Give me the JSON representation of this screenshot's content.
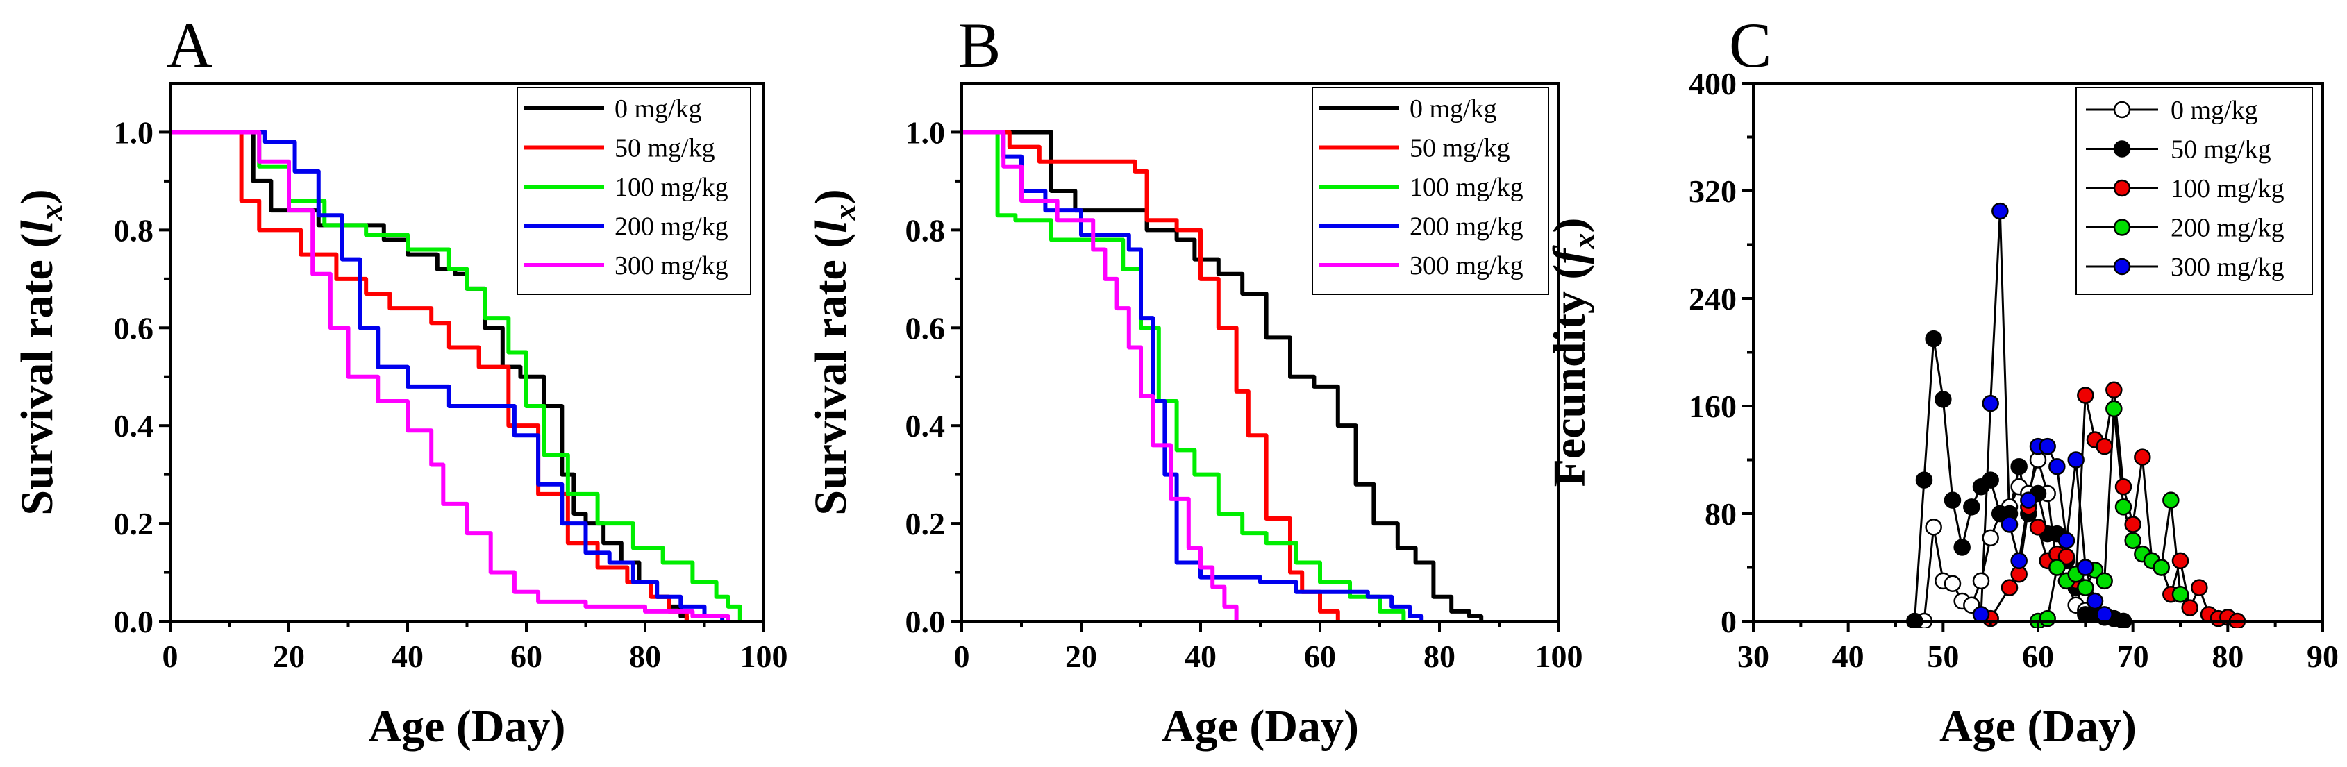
{
  "chart_data": [
    {
      "panel": "A",
      "type": "line",
      "step": true,
      "xlabel": "Age (Day)",
      "ylabel_main": "Survival rate (",
      "ylabel_var": "l",
      "ylabel_sub": "x",
      "ylabel_close": ")",
      "xlim": [
        0,
        100
      ],
      "ylim": [
        0,
        1.1
      ],
      "xticks": [
        0,
        20,
        40,
        60,
        80,
        100
      ],
      "xtick_labels": [
        "0",
        "20",
        "40",
        "60",
        "80",
        "100"
      ],
      "yticks": [
        0,
        0.2,
        0.4,
        0.6,
        0.8,
        1.0
      ],
      "ytick_labels": [
        "0.0",
        "0.2",
        "0.4",
        "0.6",
        "0.8",
        "1.0"
      ],
      "legend_position": "top-right",
      "series": [
        {
          "name": "0 mg/kg",
          "color": "#000000",
          "x": [
            0,
            12,
            14,
            17,
            25,
            32,
            36,
            40,
            45,
            48,
            50,
            53,
            56,
            59,
            63,
            66,
            68,
            70,
            73,
            76,
            79,
            82,
            84,
            86,
            87
          ],
          "y": [
            1.0,
            1.0,
            0.9,
            0.84,
            0.81,
            0.81,
            0.78,
            0.75,
            0.72,
            0.71,
            0.68,
            0.6,
            0.52,
            0.5,
            0.44,
            0.3,
            0.22,
            0.2,
            0.16,
            0.12,
            0.08,
            0.05,
            0.03,
            0.01,
            0.0
          ]
        },
        {
          "name": "50 mg/kg",
          "color": "#ff0000",
          "x": [
            0,
            11,
            12,
            15,
            22,
            28,
            33,
            37,
            44,
            47,
            52,
            57,
            62,
            67,
            72,
            77,
            81,
            84,
            87
          ],
          "y": [
            1.0,
            1.0,
            0.86,
            0.8,
            0.75,
            0.7,
            0.67,
            0.64,
            0.61,
            0.56,
            0.52,
            0.4,
            0.26,
            0.16,
            0.11,
            0.08,
            0.05,
            0.02,
            0.0
          ]
        },
        {
          "name": "100 mg/kg",
          "color": "#00ee00",
          "x": [
            0,
            13,
            15,
            20,
            26,
            33,
            40,
            47,
            50,
            53,
            57,
            60,
            63,
            67,
            72,
            78,
            83,
            88,
            92,
            94,
            96
          ],
          "y": [
            1.0,
            1.0,
            0.93,
            0.86,
            0.81,
            0.79,
            0.76,
            0.72,
            0.68,
            0.62,
            0.55,
            0.44,
            0.34,
            0.26,
            0.2,
            0.15,
            0.12,
            0.08,
            0.05,
            0.03,
            0.0
          ]
        },
        {
          "name": "200 mg/kg",
          "color": "#0000ee",
          "x": [
            0,
            13,
            16,
            21,
            25,
            29,
            32,
            35,
            40,
            47,
            51,
            58,
            62,
            66,
            70,
            74,
            78,
            82,
            86,
            90,
            93
          ],
          "y": [
            1.0,
            1.0,
            0.98,
            0.92,
            0.83,
            0.74,
            0.6,
            0.52,
            0.48,
            0.44,
            0.44,
            0.38,
            0.28,
            0.2,
            0.14,
            0.12,
            0.08,
            0.05,
            0.03,
            0.01,
            0.0
          ]
        },
        {
          "name": "300 mg/kg",
          "color": "#ff00ff",
          "x": [
            0,
            12,
            15,
            20,
            24,
            27,
            30,
            35,
            40,
            44,
            46,
            50,
            54,
            58,
            62,
            70,
            80,
            88,
            94
          ],
          "y": [
            1.0,
            1.0,
            0.94,
            0.84,
            0.71,
            0.6,
            0.5,
            0.45,
            0.39,
            0.32,
            0.24,
            0.18,
            0.1,
            0.06,
            0.04,
            0.03,
            0.02,
            0.01,
            0.0
          ]
        }
      ]
    },
    {
      "panel": "B",
      "type": "line",
      "step": true,
      "xlabel": "Age (Day)",
      "ylabel_main": "Survival rate (",
      "ylabel_var": "l",
      "ylabel_sub": "x",
      "ylabel_close": ")",
      "xlim": [
        0,
        100
      ],
      "ylim": [
        0,
        1.1
      ],
      "xticks": [
        0,
        20,
        40,
        60,
        80,
        100
      ],
      "xtick_labels": [
        "0",
        "20",
        "40",
        "60",
        "80",
        "100"
      ],
      "yticks": [
        0,
        0.2,
        0.4,
        0.6,
        0.8,
        1.0
      ],
      "ytick_labels": [
        "0.0",
        "0.2",
        "0.4",
        "0.6",
        "0.8",
        "1.0"
      ],
      "legend_position": "top-right",
      "series": [
        {
          "name": "0 mg/kg",
          "color": "#000000",
          "x": [
            0,
            12,
            15,
            19,
            26,
            31,
            36,
            39,
            43,
            47,
            51,
            55,
            59,
            63,
            66,
            69,
            73,
            76,
            79,
            82,
            85,
            87
          ],
          "y": [
            1.0,
            1.0,
            0.88,
            0.84,
            0.84,
            0.8,
            0.78,
            0.74,
            0.71,
            0.67,
            0.58,
            0.5,
            0.48,
            0.4,
            0.28,
            0.2,
            0.15,
            0.12,
            0.05,
            0.02,
            0.01,
            0.0
          ]
        },
        {
          "name": "50 mg/kg",
          "color": "#ff0000",
          "x": [
            0,
            5,
            8,
            13,
            22,
            29,
            31,
            36,
            40,
            43,
            46,
            48,
            51,
            55,
            57,
            60,
            63
          ],
          "y": [
            1.0,
            1.0,
            0.97,
            0.94,
            0.94,
            0.92,
            0.82,
            0.8,
            0.7,
            0.6,
            0.47,
            0.38,
            0.21,
            0.1,
            0.06,
            0.02,
            0.0
          ]
        },
        {
          "name": "100 mg/kg",
          "color": "#00ee00",
          "x": [
            0,
            4,
            6,
            9,
            15,
            22,
            27,
            30,
            33,
            36,
            39,
            43,
            47,
            51,
            56,
            60,
            65,
            70,
            74
          ],
          "y": [
            1.0,
            1.0,
            0.83,
            0.82,
            0.78,
            0.78,
            0.72,
            0.6,
            0.45,
            0.35,
            0.3,
            0.22,
            0.18,
            0.16,
            0.12,
            0.08,
            0.05,
            0.02,
            0.0
          ]
        },
        {
          "name": "200 mg/kg",
          "color": "#0000ee",
          "x": [
            0,
            5,
            7,
            10,
            14,
            20,
            28,
            30,
            32,
            34,
            36,
            40,
            45,
            50,
            56,
            62,
            68,
            72,
            75,
            77
          ],
          "y": [
            1.0,
            1.0,
            0.95,
            0.88,
            0.84,
            0.79,
            0.76,
            0.62,
            0.45,
            0.3,
            0.12,
            0.09,
            0.09,
            0.08,
            0.06,
            0.06,
            0.05,
            0.03,
            0.01,
            0.0
          ]
        },
        {
          "name": "300 mg/kg",
          "color": "#ff00ff",
          "x": [
            0,
            5,
            7,
            10,
            16,
            22,
            24,
            26,
            28,
            30,
            32,
            35,
            38,
            40,
            42,
            44,
            46
          ],
          "y": [
            1.0,
            1.0,
            0.93,
            0.86,
            0.82,
            0.76,
            0.7,
            0.64,
            0.56,
            0.46,
            0.36,
            0.25,
            0.15,
            0.11,
            0.07,
            0.03,
            0.0
          ]
        }
      ]
    },
    {
      "panel": "C",
      "type": "line",
      "markers": true,
      "xlabel": "Age (Day)",
      "ylabel_main": "Fecundity (",
      "ylabel_var": "f",
      "ylabel_sub": "x",
      "ylabel_close": ")",
      "xlim": [
        30,
        90
      ],
      "ylim": [
        0,
        400
      ],
      "xticks": [
        30,
        40,
        50,
        60,
        70,
        80,
        90
      ],
      "xtick_labels": [
        "30",
        "40",
        "50",
        "60",
        "70",
        "80",
        "90"
      ],
      "yticks": [
        0,
        80,
        160,
        240,
        320,
        400
      ],
      "ytick_labels": [
        "0",
        "80",
        "160",
        "240",
        "320",
        "400"
      ],
      "legend_position": "top-right",
      "series": [
        {
          "name": "0 mg/kg",
          "color": "#000000",
          "marker_fill": "#ffffff",
          "x": [
            48,
            49,
            50,
            51,
            52,
            53,
            54,
            55,
            56,
            57,
            58,
            59,
            60,
            61,
            62,
            63,
            64,
            65,
            66,
            67,
            68,
            69
          ],
          "y": [
            0,
            70,
            30,
            28,
            15,
            12,
            30,
            62,
            80,
            85,
            100,
            95,
            120,
            95,
            40,
            30,
            12,
            8,
            5,
            3,
            2,
            0
          ]
        },
        {
          "name": "50 mg/kg",
          "color": "#000000",
          "marker_fill": "#000000",
          "x": [
            47,
            48,
            49,
            50,
            51,
            52,
            53,
            54,
            55,
            56,
            57,
            58,
            59,
            60,
            61,
            62,
            63,
            64,
            65,
            66,
            67,
            68,
            69
          ],
          "y": [
            0,
            105,
            210,
            165,
            90,
            55,
            85,
            100,
            105,
            80,
            80,
            115,
            80,
            95,
            65,
            65,
            45,
            25,
            5,
            5,
            3,
            2,
            0
          ]
        },
        {
          "name": "100 mg/kg",
          "color": "#000000",
          "marker_fill": "#ee0000",
          "x": [
            55,
            57,
            58,
            59,
            60,
            61,
            62,
            63,
            64,
            65,
            66,
            67,
            68,
            69,
            70,
            71,
            72,
            73,
            74,
            75,
            76,
            77,
            78,
            79,
            80,
            81
          ],
          "y": [
            2,
            25,
            35,
            85,
            70,
            45,
            50,
            48,
            30,
            168,
            135,
            130,
            172,
            100,
            72,
            122,
            45,
            40,
            20,
            45,
            10,
            25,
            5,
            2,
            3,
            0
          ]
        },
        {
          "name": "200 mg/kg",
          "color": "#000000",
          "marker_fill": "#00dd00",
          "x": [
            60,
            61,
            62,
            63,
            64,
            65,
            66,
            67,
            68,
            69,
            70,
            71,
            72,
            73,
            74,
            75
          ],
          "y": [
            0,
            2,
            40,
            30,
            35,
            25,
            38,
            30,
            158,
            85,
            60,
            50,
            45,
            40,
            90,
            20
          ]
        },
        {
          "name": "300 mg/kg",
          "color": "#000000",
          "marker_fill": "#0000ee",
          "x": [
            54,
            55,
            56,
            57,
            58,
            59,
            60,
            61,
            62,
            63,
            64,
            65,
            66,
            67
          ],
          "y": [
            5,
            162,
            305,
            72,
            45,
            90,
            130,
            130,
            115,
            60,
            120,
            40,
            15,
            5
          ]
        }
      ]
    }
  ]
}
